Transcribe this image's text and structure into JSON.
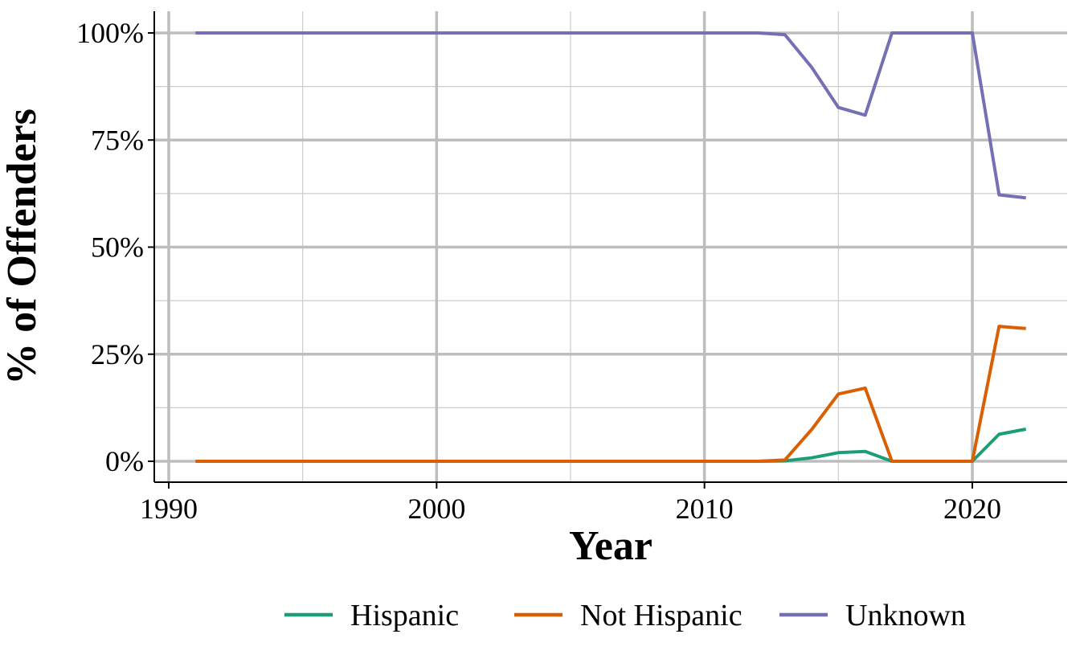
{
  "chart_data": {
    "type": "line",
    "title": "",
    "xlabel": "Year",
    "ylabel": "% of Offenders",
    "xlim": [
      1990,
      2023
    ],
    "ylim": [
      0,
      100
    ],
    "grid": true,
    "legend_position": "bottom",
    "x_ticks": [
      {
        "value": 1990,
        "label": "1990"
      },
      {
        "value": 2000,
        "label": "2000"
      },
      {
        "value": 2010,
        "label": "2010"
      },
      {
        "value": 2020,
        "label": "2020"
      }
    ],
    "y_ticks": [
      {
        "value": 0,
        "label": "0%"
      },
      {
        "value": 25,
        "label": "25%"
      },
      {
        "value": 50,
        "label": "50%"
      },
      {
        "value": 75,
        "label": "75%"
      },
      {
        "value": 100,
        "label": "100%"
      }
    ],
    "x": [
      1991,
      1992,
      1993,
      1994,
      1995,
      1996,
      1997,
      1998,
      1999,
      2000,
      2001,
      2002,
      2003,
      2004,
      2005,
      2006,
      2007,
      2008,
      2009,
      2010,
      2011,
      2012,
      2013,
      2014,
      2015,
      2016,
      2017,
      2018,
      2019,
      2020,
      2021,
      2022
    ],
    "series": [
      {
        "name": "Hispanic",
        "color": "#1b9e77",
        "values": [
          0,
          0,
          0,
          0,
          0,
          0,
          0,
          0,
          0,
          0,
          0,
          0,
          0,
          0,
          0,
          0,
          0,
          0,
          0,
          0,
          0,
          0,
          0.1,
          0.8,
          2.0,
          2.3,
          0,
          0,
          0,
          0,
          6.3,
          7.5
        ]
      },
      {
        "name": "Not Hispanic",
        "color": "#d95f02",
        "values": [
          0,
          0,
          0,
          0,
          0,
          0,
          0,
          0,
          0,
          0,
          0,
          0,
          0,
          0,
          0,
          0,
          0,
          0,
          0,
          0,
          0,
          0,
          0.3,
          7.4,
          15.7,
          17.1,
          0,
          0,
          0,
          0,
          31.5,
          31.0
        ]
      },
      {
        "name": "Unknown",
        "color": "#7570b3",
        "values": [
          100,
          100,
          100,
          100,
          100,
          100,
          100,
          100,
          100,
          100,
          100,
          100,
          100,
          100,
          100,
          100,
          100,
          100,
          100,
          100,
          100,
          100,
          99.6,
          92.0,
          82.6,
          80.8,
          100,
          100,
          100,
          100,
          62.2,
          61.5
        ]
      }
    ]
  }
}
